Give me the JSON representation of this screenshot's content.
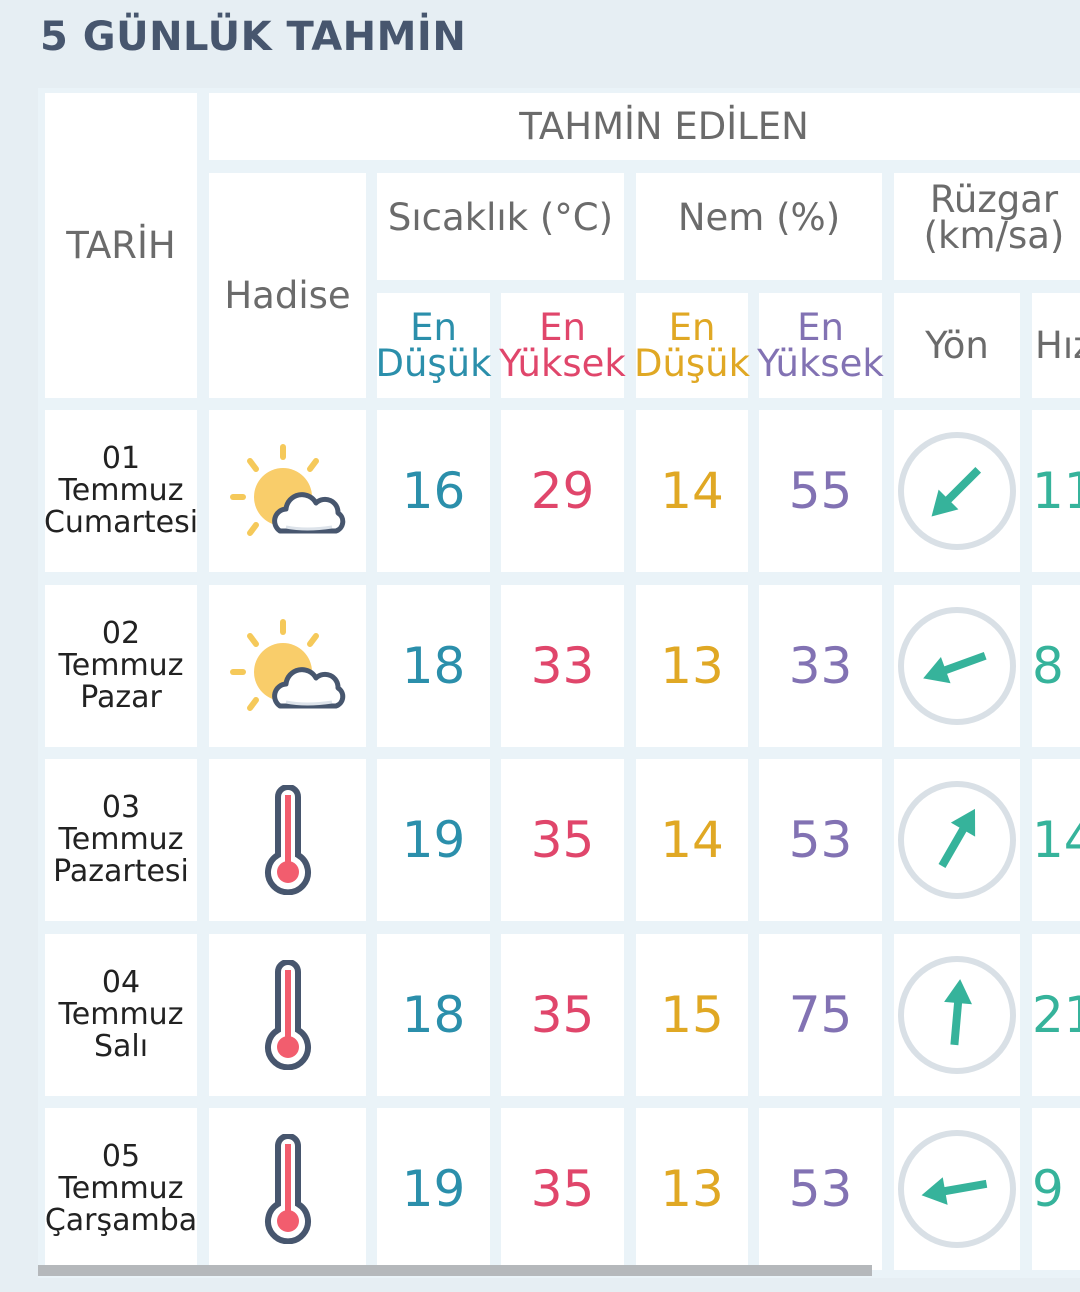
{
  "title": "5 GÜNLÜK TAHMİN",
  "header": {
    "date": "TARİH",
    "event": "Hadise",
    "forecast": "TAHMİN EDİLEN",
    "temperature": "Sıcaklık (°C)",
    "humidity": "Nem (%)",
    "wind_line1": "Rüzgar",
    "wind_line2": "(km/sa)",
    "en": "En",
    "min": "Düşük",
    "max": "Yüksek",
    "direction": "Yön",
    "speed": "Hız"
  },
  "colors": {
    "temp_min": "#2b8fab",
    "temp_max": "#e0466b",
    "hum_min": "#e0a824",
    "hum_max": "#8272b3",
    "wind": "#36b39b"
  },
  "rows": [
    {
      "day": "01",
      "month": "Temmuz",
      "weekday": "Cumartesi",
      "icon": "partly-cloudy-icon",
      "temp_min": "16",
      "temp_max": "29",
      "hum_min": "14",
      "hum_max": "55",
      "wind_dir_deg": 225,
      "wind_speed": "11"
    },
    {
      "day": "02",
      "month": "Temmuz",
      "weekday": "Pazar",
      "icon": "partly-cloudy-icon",
      "temp_min": "18",
      "temp_max": "33",
      "hum_min": "13",
      "hum_max": "33",
      "wind_dir_deg": 250,
      "wind_speed": "8"
    },
    {
      "day": "03",
      "month": "Temmuz",
      "weekday": "Pazartesi",
      "icon": "thermometer-hot-icon",
      "temp_min": "19",
      "temp_max": "35",
      "hum_min": "14",
      "hum_max": "53",
      "wind_dir_deg": 30,
      "wind_speed": "14"
    },
    {
      "day": "04",
      "month": "Temmuz",
      "weekday": "Salı",
      "icon": "thermometer-hot-icon",
      "temp_min": "18",
      "temp_max": "35",
      "hum_min": "15",
      "hum_max": "75",
      "wind_dir_deg": 5,
      "wind_speed": "21"
    },
    {
      "day": "05",
      "month": "Temmuz",
      "weekday": "Çarşamba",
      "icon": "thermometer-hot-icon",
      "temp_min": "19",
      "temp_max": "35",
      "hum_min": "13",
      "hum_max": "53",
      "wind_dir_deg": 260,
      "wind_speed": "9"
    }
  ]
}
